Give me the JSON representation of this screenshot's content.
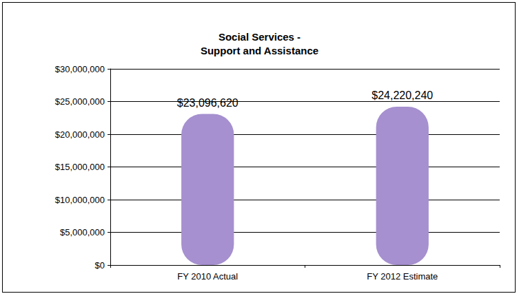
{
  "chart_data": {
    "type": "bar",
    "title": "Social Services -\nSupport and Assistance",
    "categories": [
      "FY 2010 Actual",
      "FY 2012 Estimate"
    ],
    "values": [
      23096620,
      24220240
    ],
    "value_labels": [
      "$23,096,620",
      "$24,220,240"
    ],
    "color": "#a690cf",
    "ylim": [
      0,
      30000000
    ],
    "yticks": [
      {
        "value": 0,
        "label": "$0"
      },
      {
        "value": 5000000,
        "label": "$5,000,000"
      },
      {
        "value": 10000000,
        "label": "$10,000,000"
      },
      {
        "value": 15000000,
        "label": "$15,000,000"
      },
      {
        "value": 20000000,
        "label": "$20,000,000"
      },
      {
        "value": 25000000,
        "label": "$25,000,000"
      },
      {
        "value": 30000000,
        "label": "$30,000,000"
      }
    ],
    "grid": true,
    "data_labels": true
  }
}
